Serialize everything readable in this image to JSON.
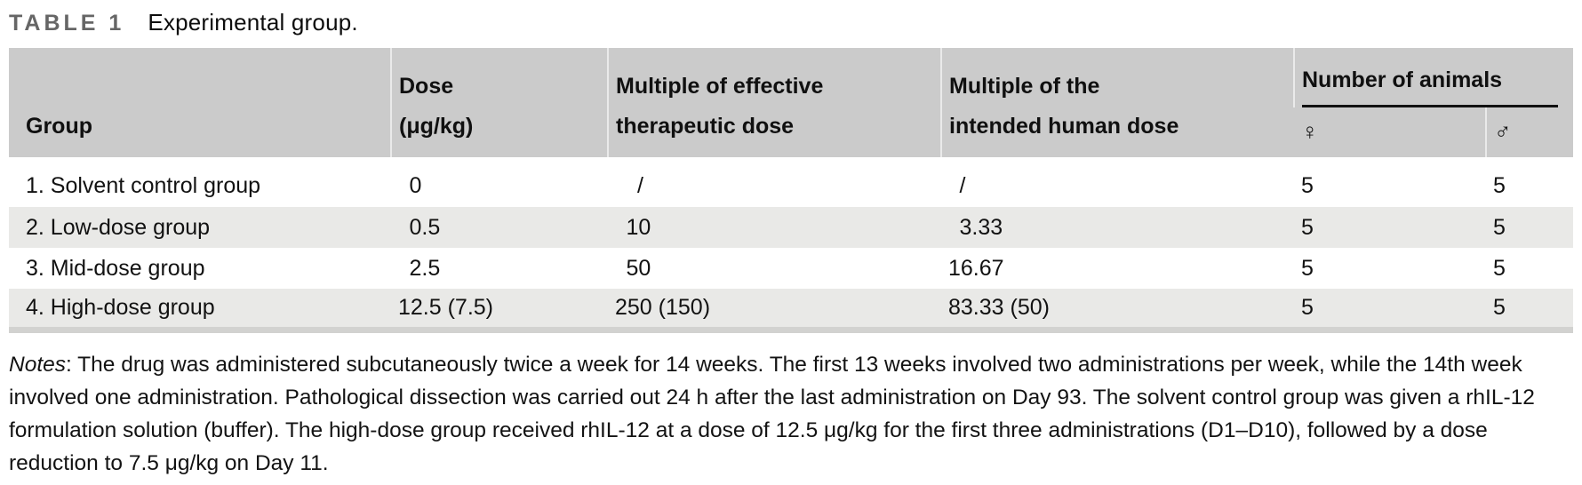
{
  "title": {
    "label": "TABLE 1",
    "caption": "Experimental group."
  },
  "table": {
    "headers": {
      "group": [
        "Group"
      ],
      "dose": [
        "Dose",
        "(μg/kg)"
      ],
      "effective_multiple": [
        "Multiple of effective",
        "therapeutic dose"
      ],
      "human_multiple": [
        "Multiple of the",
        "intended human dose"
      ],
      "animals_group": "Number of animals",
      "female_symbol": "♀",
      "male_symbol": "♂"
    },
    "rows": [
      [
        "1. Solvent control group",
        "0",
        "/",
        "/",
        "5",
        "5"
      ],
      [
        "2. Low-dose group",
        "0.5",
        "10",
        "3.33",
        "5",
        "5"
      ],
      [
        "3. Mid-dose group",
        "2.5",
        "50",
        "16.67",
        "5",
        "5"
      ],
      [
        "4. High-dose group",
        "12.5 (7.5)",
        "250 (150)",
        "83.33 (50)",
        "5",
        "5"
      ]
    ]
  },
  "notes": {
    "label": "Notes",
    "body": ": The drug was administered subcutaneously twice a week for 14 weeks. The first 13 weeks involved two administrations per week, while the 14th week involved one administration. Pathological dissection was carried out 24 h after the last administration on Day 93. The solvent control group was given a rhIL-12 formulation solution (buffer). The high-dose group received rhIL-12 at a dose of 12.5 μg/kg for the first three administrations (D1–D10), followed by a dose reduction to 7.5 μg/kg on Day 11."
  },
  "colors": {
    "header_bg": "#cbcbcb",
    "row_stripe": "#e9e9e7",
    "table_bottom_border": "#d2d2d0",
    "rule_black": "#111111",
    "label_gray": "#666666",
    "text": "#141414"
  }
}
